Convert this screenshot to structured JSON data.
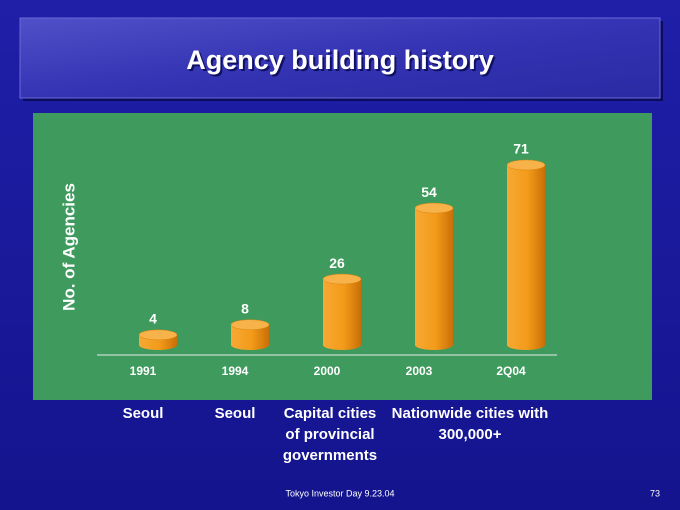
{
  "chart_data": {
    "type": "bar",
    "title": "Agency building history",
    "y_label": "No. of Agencies",
    "categories": [
      "1991",
      "1994",
      "2000",
      "2003",
      "2Q04"
    ],
    "values": [
      4,
      8,
      26,
      54,
      71
    ],
    "color": "#f39a18",
    "region_labels": [
      [
        "Seoul"
      ],
      [
        "Seoul"
      ],
      [
        "Capital cities",
        "of provincial",
        "governments"
      ],
      [
        "Nationwide cities with",
        "300,000+"
      ]
    ],
    "footer": "Tokyo Investor Day 9.23.04",
    "page_number": "73"
  }
}
